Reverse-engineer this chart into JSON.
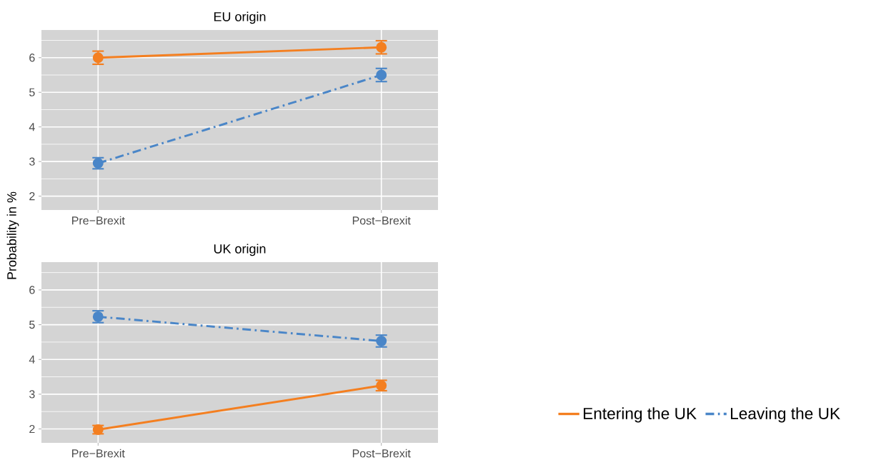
{
  "chart_data": [
    {
      "type": "line",
      "title": "EU origin",
      "ylabel": "Probability in %",
      "categories": [
        "Pre−Brexit",
        "Post−Brexit"
      ],
      "ylim": [
        1.6,
        6.8
      ],
      "yticks": [
        2,
        3,
        4,
        5,
        6
      ],
      "grid": true,
      "marker": "circle",
      "legend": false,
      "series": [
        {
          "color": "#f47f20",
          "values": [
            6.0,
            6.3
          ],
          "errors": [
            0.19,
            0.19
          ],
          "line_style": "solid"
        },
        {
          "color": "#4a86c8",
          "values": [
            2.95,
            5.5
          ],
          "errors": [
            0.16,
            0.19
          ],
          "line_style": "dashdot"
        }
      ]
    },
    {
      "type": "line",
      "title": "UK origin",
      "categories": [
        "Pre−Brexit",
        "Post−Brexit"
      ],
      "ylim": [
        1.6,
        6.8
      ],
      "yticks": [
        2,
        3,
        4,
        5,
        6
      ],
      "grid": true,
      "marker": "circle",
      "legend": "bottom right",
      "series": [
        {
          "name": "Entering the UK",
          "color": "#f47f20",
          "values": [
            1.98,
            3.25
          ],
          "errors": [
            0.12,
            0.15
          ],
          "line_style": "solid"
        },
        {
          "name": "Leaving the UK",
          "color": "#4a86c8",
          "values": [
            5.23,
            4.53
          ],
          "errors": [
            0.17,
            0.17
          ],
          "line_style": "dashdot"
        }
      ]
    }
  ]
}
